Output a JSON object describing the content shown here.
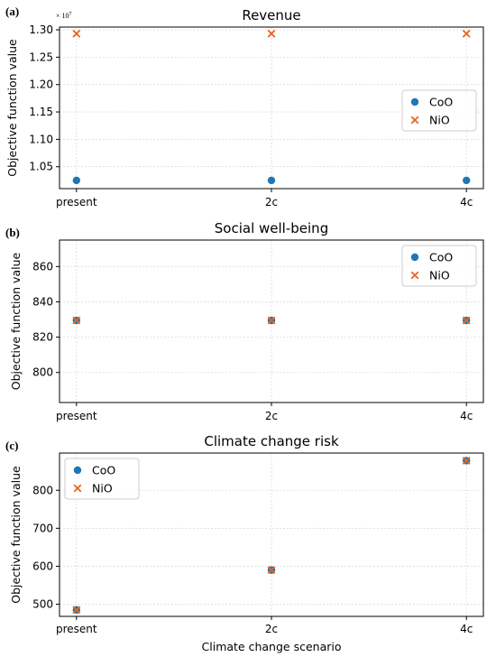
{
  "chart_data": [
    {
      "type": "scatter",
      "panel_label": "(a)",
      "title": "Revenue",
      "ylabel": "Objective function value",
      "xlabel": "",
      "categories": [
        "present",
        "2c",
        "4c"
      ],
      "ylim": [
        1.01,
        1.305
      ],
      "yticks": [
        1.05,
        1.1,
        1.15,
        1.2,
        1.25,
        1.3
      ],
      "ytick_labels": [
        "1.05",
        "1.10",
        "1.15",
        "1.20",
        "1.25",
        "1.30"
      ],
      "y_multiplier": "× 10",
      "y_multiplier_exp": "7",
      "legend_position": "center-right",
      "grid": true,
      "series": [
        {
          "name": "CoO",
          "marker": "circle",
          "color": "#1f77b4",
          "values": [
            1.025,
            1.025,
            1.025
          ]
        },
        {
          "name": "NiO",
          "marker": "x",
          "color": "#e8641e",
          "values": [
            1.293,
            1.293,
            1.293
          ]
        }
      ]
    },
    {
      "type": "scatter",
      "panel_label": "(b)",
      "title": "Social well-being",
      "ylabel": "Objective function value",
      "xlabel": "",
      "categories": [
        "present",
        "2c",
        "4c"
      ],
      "ylim": [
        783,
        875
      ],
      "yticks": [
        800,
        820,
        840,
        860
      ],
      "ytick_labels": [
        "800",
        "820",
        "840",
        "860"
      ],
      "legend_position": "top-right",
      "grid": true,
      "series": [
        {
          "name": "CoO",
          "marker": "circle",
          "color": "#1f77b4",
          "values": [
            829.5,
            829.5,
            829.5
          ]
        },
        {
          "name": "NiO",
          "marker": "x",
          "color": "#e8641e",
          "values": [
            829.5,
            829.5,
            829.5
          ]
        }
      ]
    },
    {
      "type": "scatter",
      "panel_label": "(c)",
      "title": "Climate change risk",
      "ylabel": "Objective function value",
      "xlabel": "Climate change scenario",
      "categories": [
        "present",
        "2c",
        "4c"
      ],
      "ylim": [
        468,
        898
      ],
      "yticks": [
        500,
        600,
        700,
        800
      ],
      "ytick_labels": [
        "500",
        "600",
        "700",
        "800"
      ],
      "legend_position": "top-left",
      "grid": true,
      "series": [
        {
          "name": "CoO",
          "marker": "circle",
          "color": "#1f77b4",
          "values": [
            485,
            590,
            878
          ]
        },
        {
          "name": "NiO",
          "marker": "x",
          "color": "#e8641e",
          "values": [
            485,
            590,
            878
          ]
        }
      ]
    }
  ]
}
